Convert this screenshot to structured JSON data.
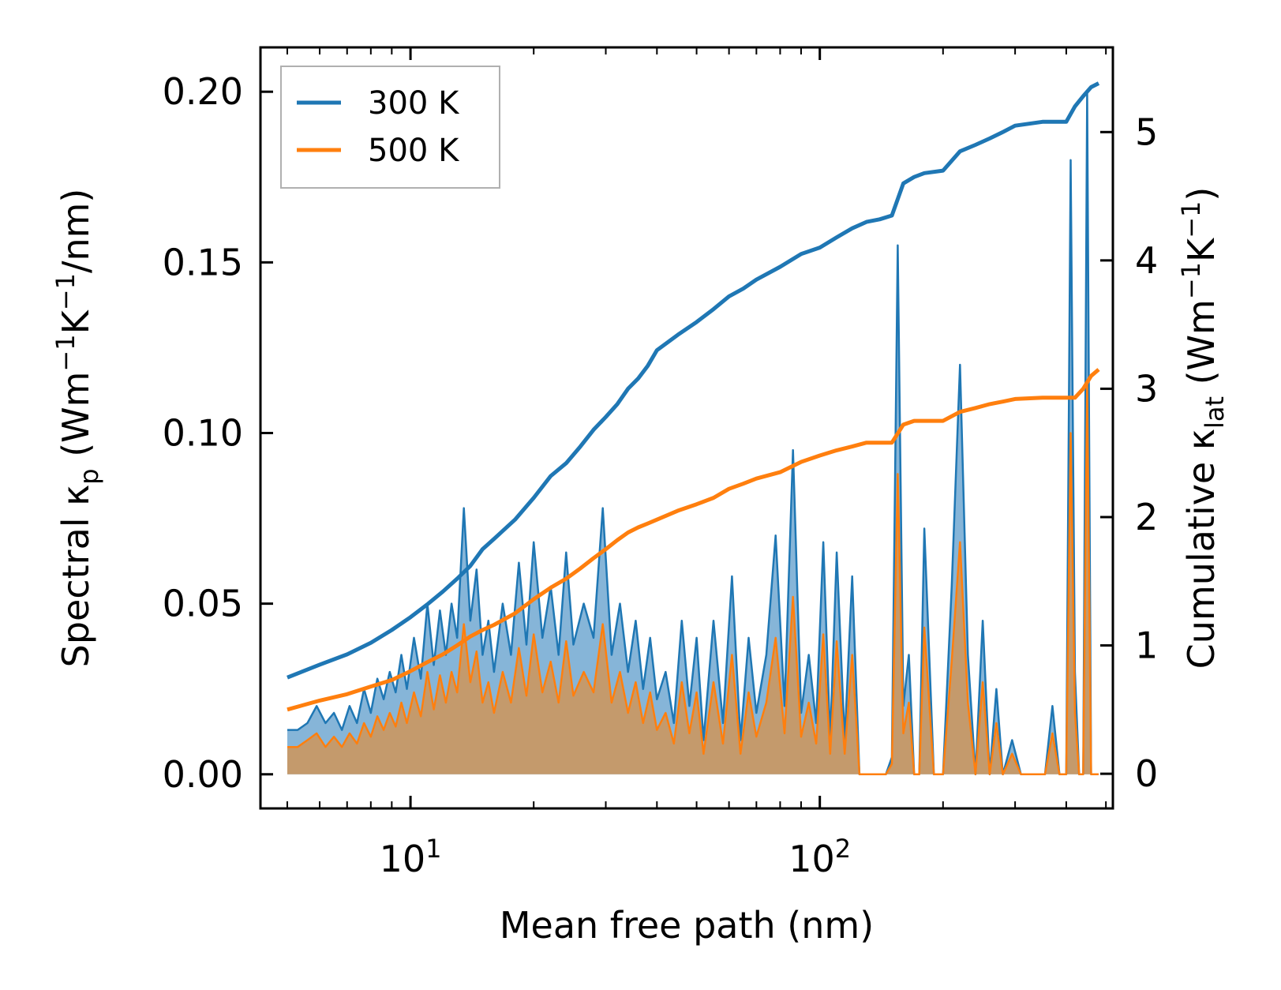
{
  "chart_data": {
    "type": "line",
    "xlabel": "Mean free path (nm)",
    "ylabel_left": "Spectral κ_p (Wm⁻¹K⁻¹/nm)",
    "ylabel_right": "Cumulative κ_lat (Wm⁻¹K⁻¹)",
    "xscale": "log",
    "xlim": [
      4.3,
      520
    ],
    "ylim_left": [
      -0.01,
      0.213
    ],
    "ylim_right": [
      -0.27,
      5.66
    ],
    "x_ticks": [
      {
        "value": 10,
        "base": "10",
        "exp": "1"
      },
      {
        "value": 100,
        "base": "10",
        "exp": "2"
      }
    ],
    "y_ticks_left": [
      "0.00",
      "0.05",
      "0.10",
      "0.15",
      "0.20"
    ],
    "y_tick_values_left": [
      0,
      0.05,
      0.1,
      0.15,
      0.2
    ],
    "y_ticks_right": [
      "0",
      "1",
      "2",
      "3",
      "4",
      "5"
    ],
    "y_tick_values_right": [
      0,
      1,
      2,
      3,
      4,
      5
    ],
    "legend": {
      "placement": "top-left",
      "entries": [
        "300 K",
        "500 K"
      ]
    },
    "colors": {
      "s300": "#1f77b4",
      "s500": "#ff7f0e",
      "fill300": "#7fb1d6",
      "fill500": "#c49a6c"
    },
    "series": [
      {
        "name": "300 K",
        "role": "cumulative",
        "axis": "right",
        "x": [
          5,
          6,
          7,
          8,
          9,
          10,
          11,
          12,
          13,
          14,
          15,
          16,
          18,
          20,
          22,
          24,
          26,
          28,
          30,
          32,
          34,
          36,
          38,
          40,
          45,
          50,
          55,
          60,
          65,
          70,
          80,
          90,
          100,
          110,
          120,
          130,
          140,
          150,
          160,
          170,
          180,
          200,
          220,
          240,
          260,
          280,
          300,
          350,
          400,
          420,
          440,
          460,
          480
        ],
        "values": [
          0.75,
          0.85,
          0.93,
          1.02,
          1.12,
          1.22,
          1.32,
          1.42,
          1.52,
          1.62,
          1.75,
          1.83,
          1.98,
          2.15,
          2.32,
          2.42,
          2.55,
          2.68,
          2.78,
          2.88,
          3.0,
          3.08,
          3.18,
          3.3,
          3.42,
          3.52,
          3.62,
          3.72,
          3.78,
          3.85,
          3.95,
          4.05,
          4.1,
          4.18,
          4.25,
          4.3,
          4.32,
          4.35,
          4.6,
          4.65,
          4.68,
          4.7,
          4.85,
          4.9,
          4.95,
          5.0,
          5.05,
          5.08,
          5.08,
          5.2,
          5.28,
          5.35,
          5.38
        ]
      },
      {
        "name": "500 K",
        "role": "cumulative",
        "axis": "right",
        "x": [
          5,
          6,
          7,
          8,
          9,
          10,
          11,
          12,
          13,
          14,
          15,
          16,
          18,
          20,
          22,
          24,
          26,
          28,
          30,
          32,
          34,
          36,
          38,
          40,
          45,
          50,
          55,
          60,
          65,
          70,
          80,
          90,
          100,
          110,
          120,
          130,
          140,
          150,
          160,
          170,
          180,
          200,
          220,
          240,
          260,
          280,
          300,
          350,
          400,
          420,
          440,
          460,
          480
        ],
        "values": [
          0.5,
          0.57,
          0.62,
          0.68,
          0.73,
          0.8,
          0.87,
          0.93,
          1.0,
          1.07,
          1.12,
          1.16,
          1.25,
          1.36,
          1.45,
          1.52,
          1.6,
          1.68,
          1.75,
          1.82,
          1.88,
          1.92,
          1.95,
          1.98,
          2.05,
          2.1,
          2.15,
          2.22,
          2.26,
          2.3,
          2.35,
          2.43,
          2.48,
          2.52,
          2.55,
          2.58,
          2.58,
          2.58,
          2.72,
          2.75,
          2.75,
          2.75,
          2.82,
          2.85,
          2.88,
          2.9,
          2.92,
          2.93,
          2.93,
          2.93,
          3.0,
          3.1,
          3.15
        ]
      },
      {
        "name": "300 K",
        "role": "spectral",
        "axis": "left",
        "x": [
          5,
          5.3,
          5.6,
          5.9,
          6.2,
          6.5,
          6.8,
          7.1,
          7.4,
          7.7,
          8.0,
          8.3,
          8.6,
          8.9,
          9.2,
          9.5,
          9.8,
          10.2,
          10.6,
          11.0,
          11.4,
          11.8,
          12.2,
          12.6,
          13.0,
          13.5,
          14.0,
          14.5,
          15.0,
          15.5,
          16.0,
          16.8,
          17.6,
          18.4,
          19.2,
          20.0,
          21.0,
          22.0,
          23.0,
          24.0,
          25.0,
          26.5,
          28.0,
          29.5,
          31.0,
          32.5,
          34.0,
          35.5,
          37.0,
          38.5,
          40.0,
          42.0,
          44.0,
          46.0,
          48.0,
          50.0,
          52.0,
          55.0,
          58.0,
          61.0,
          64.0,
          67.0,
          70.0,
          74.0,
          78.0,
          82.0,
          86.0,
          90.0,
          94.0,
          98.0,
          102.0,
          106.0,
          110.0,
          115.0,
          120.0,
          125.0,
          130.0,
          135.0,
          140.0,
          145.0,
          150.0,
          155.0,
          160.0,
          165.0,
          170.0,
          175.0,
          180.0,
          190.0,
          200.0,
          210.0,
          220.0,
          230.0,
          240.0,
          250.0,
          260.0,
          270.0,
          280.0,
          295.0,
          310.0,
          325.0,
          340.0,
          355.0,
          370.0,
          385.0,
          400.0,
          410.0,
          420.0,
          430.0,
          440.0,
          450.0,
          460.0,
          470.0,
          480.0
        ],
        "values": [
          0.013,
          0.013,
          0.015,
          0.02,
          0.015,
          0.018,
          0.013,
          0.02,
          0.015,
          0.025,
          0.018,
          0.028,
          0.022,
          0.03,
          0.024,
          0.035,
          0.025,
          0.04,
          0.028,
          0.05,
          0.032,
          0.048,
          0.035,
          0.05,
          0.04,
          0.078,
          0.045,
          0.06,
          0.035,
          0.045,
          0.03,
          0.05,
          0.035,
          0.062,
          0.038,
          0.068,
          0.04,
          0.055,
          0.035,
          0.065,
          0.038,
          0.05,
          0.04,
          0.078,
          0.035,
          0.05,
          0.03,
          0.045,
          0.025,
          0.04,
          0.022,
          0.03,
          0.015,
          0.045,
          0.02,
          0.04,
          0.01,
          0.045,
          0.015,
          0.058,
          0.01,
          0.04,
          0.018,
          0.035,
          0.07,
          0.02,
          0.095,
          0.018,
          0.035,
          0.015,
          0.068,
          0.01,
          0.065,
          0.01,
          0.058,
          0.0,
          0.0,
          0.0,
          0.0,
          0.0,
          0.005,
          0.155,
          0.02,
          0.035,
          0.0,
          0.0,
          0.072,
          0.0,
          0.0,
          0.055,
          0.12,
          0.035,
          0.0,
          0.045,
          0.0,
          0.025,
          0.0,
          0.01,
          0.0,
          0.0,
          0.0,
          0.0,
          0.02,
          0.0,
          0.0,
          0.18,
          0.03,
          0.0,
          0.0,
          0.2,
          0.0,
          0.0,
          0.0
        ]
      },
      {
        "name": "500 K",
        "role": "spectral",
        "axis": "left",
        "x": [
          5,
          5.3,
          5.6,
          5.9,
          6.2,
          6.5,
          6.8,
          7.1,
          7.4,
          7.7,
          8.0,
          8.3,
          8.6,
          8.9,
          9.2,
          9.5,
          9.8,
          10.2,
          10.6,
          11.0,
          11.4,
          11.8,
          12.2,
          12.6,
          13.0,
          13.5,
          14.0,
          14.5,
          15.0,
          15.5,
          16.0,
          16.8,
          17.6,
          18.4,
          19.2,
          20.0,
          21.0,
          22.0,
          23.0,
          24.0,
          25.0,
          26.5,
          28.0,
          29.5,
          31.0,
          32.5,
          34.0,
          35.5,
          37.0,
          38.5,
          40.0,
          42.0,
          44.0,
          46.0,
          48.0,
          50.0,
          52.0,
          55.0,
          58.0,
          61.0,
          64.0,
          67.0,
          70.0,
          74.0,
          78.0,
          82.0,
          86.0,
          90.0,
          94.0,
          98.0,
          102.0,
          106.0,
          110.0,
          115.0,
          120.0,
          125.0,
          130.0,
          135.0,
          140.0,
          145.0,
          150.0,
          155.0,
          160.0,
          165.0,
          170.0,
          175.0,
          180.0,
          190.0,
          200.0,
          210.0,
          220.0,
          230.0,
          240.0,
          250.0,
          260.0,
          270.0,
          280.0,
          295.0,
          310.0,
          325.0,
          340.0,
          355.0,
          370.0,
          385.0,
          400.0,
          410.0,
          420.0,
          430.0,
          440.0,
          450.0,
          460.0,
          470.0,
          480.0
        ],
        "values": [
          0.008,
          0.008,
          0.01,
          0.012,
          0.008,
          0.011,
          0.008,
          0.012,
          0.009,
          0.015,
          0.011,
          0.017,
          0.013,
          0.018,
          0.014,
          0.021,
          0.015,
          0.024,
          0.017,
          0.03,
          0.019,
          0.029,
          0.021,
          0.03,
          0.024,
          0.044,
          0.027,
          0.036,
          0.021,
          0.027,
          0.018,
          0.03,
          0.021,
          0.037,
          0.023,
          0.041,
          0.024,
          0.033,
          0.021,
          0.039,
          0.023,
          0.03,
          0.024,
          0.044,
          0.021,
          0.03,
          0.018,
          0.027,
          0.015,
          0.024,
          0.013,
          0.018,
          0.009,
          0.027,
          0.012,
          0.024,
          0.006,
          0.027,
          0.009,
          0.035,
          0.006,
          0.024,
          0.011,
          0.021,
          0.04,
          0.012,
          0.052,
          0.011,
          0.021,
          0.009,
          0.041,
          0.006,
          0.039,
          0.006,
          0.035,
          0.0,
          0.0,
          0.0,
          0.0,
          0.0,
          0.003,
          0.088,
          0.012,
          0.021,
          0.0,
          0.0,
          0.043,
          0.0,
          0.0,
          0.033,
          0.068,
          0.021,
          0.0,
          0.027,
          0.0,
          0.015,
          0.0,
          0.006,
          0.0,
          0.0,
          0.0,
          0.0,
          0.012,
          0.0,
          0.0,
          0.1,
          0.018,
          0.0,
          0.0,
          0.115,
          0.0,
          0.0,
          0.0
        ]
      }
    ]
  }
}
